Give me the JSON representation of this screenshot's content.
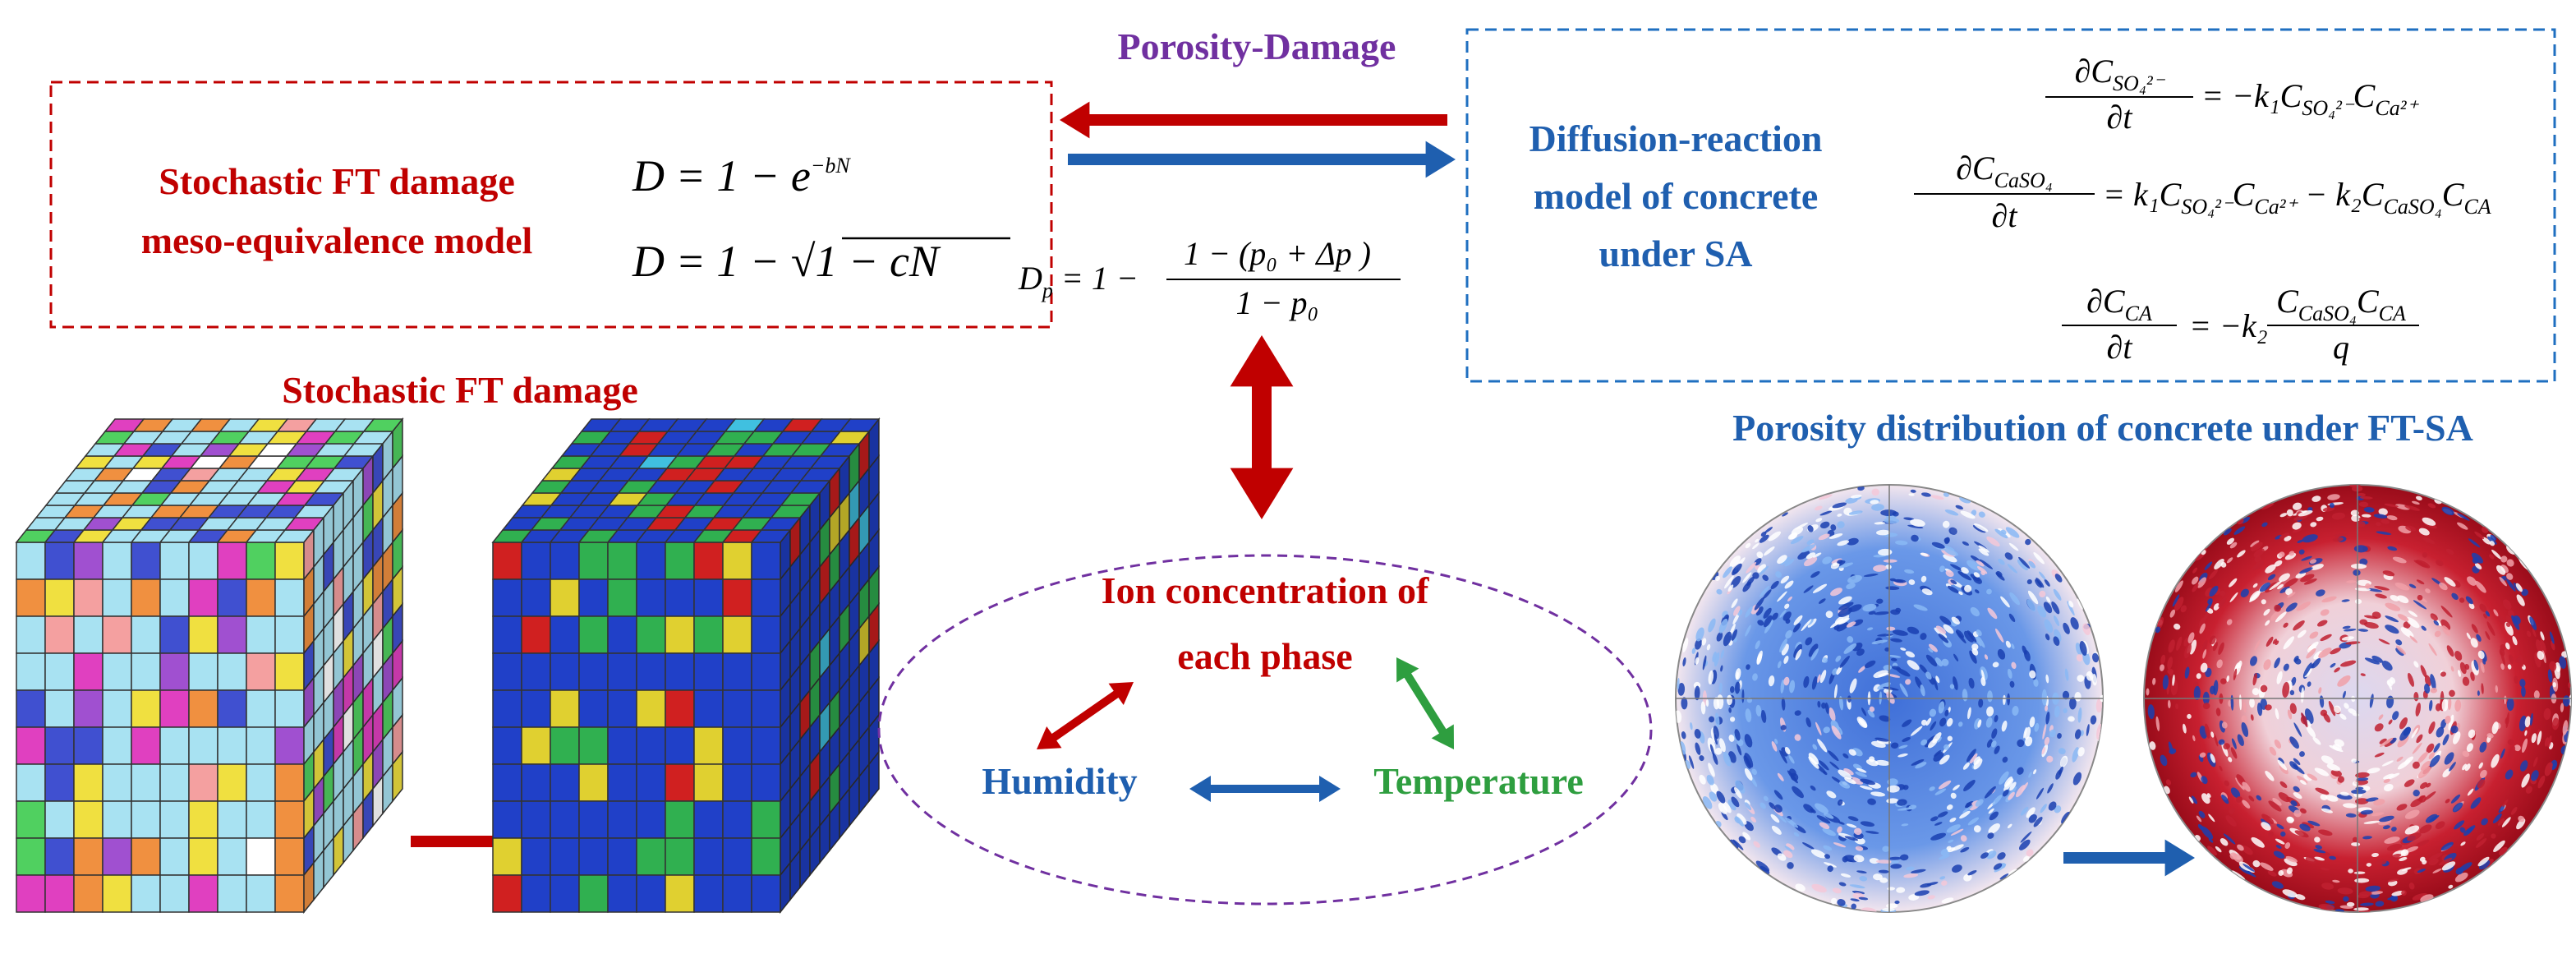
{
  "labels": {
    "porosity_damage": "Porosity-Damage",
    "ft_model": [
      "Stochastic FT damage",
      "meso-equivalence model"
    ],
    "diffusion_model": [
      "Diffusion-reaction",
      "model of concrete",
      "under SA"
    ],
    "ft_damage": "Stochastic FT damage",
    "porosity_distribution": "Porosity distribution of concrete under FT-SA",
    "ion": [
      "Ion concentration of",
      "each phase"
    ],
    "humidity": "Humidity",
    "temperature": "Temperature"
  },
  "ft_equations": [
    [
      "D = 1 − e",
      "−bN"
    ],
    [
      "D = 1 − √",
      "1 − cN"
    ]
  ],
  "porosity_equation": {
    "lhs": [
      "D",
      "p",
      " = 1 −"
    ],
    "numerator": "1 − (p₀ + Δp )",
    "denominator": "1 − p₀"
  },
  "diffusion_equations": [
    {
      "numerator": [
        "∂C",
        "SO₄²⁻"
      ],
      "denominator": "∂t",
      "rhs": [
        "= −k₁C",
        "SO₄²⁻",
        "C",
        "Ca²⁺"
      ]
    },
    {
      "numerator": [
        "∂C",
        "CaSO₄"
      ],
      "denominator": "∂t",
      "rhs": [
        "= k₁C",
        "SO₄²⁻",
        "C",
        "Ca²⁺",
        " − k₂C",
        "CaSO₄",
        "C",
        "CA"
      ]
    },
    {
      "numerator": [
        "∂C",
        "CA"
      ],
      "denominator": "∂t",
      "rhs": [
        "= −k₂"
      ],
      "rhs_numerator": [
        "C",
        "CaSO₄",
        "C",
        "CA"
      ],
      "rhs_denominator": "q"
    }
  ]
}
